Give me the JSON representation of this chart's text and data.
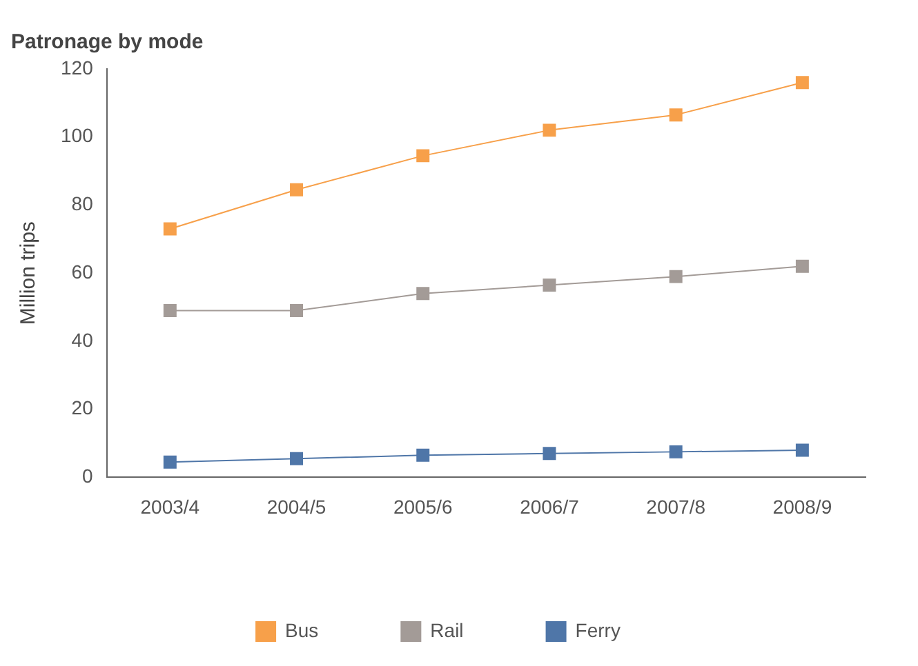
{
  "chart_data": {
    "type": "line",
    "title": "Patronage by mode",
    "ylabel": "Million trips",
    "categories": [
      "2003/4",
      "2004/5",
      "2005/6",
      "2006/7",
      "2007/8",
      "2008/9"
    ],
    "series": [
      {
        "name": "Bus",
        "color": "#f7a04a",
        "values": [
          73,
          84.5,
          94.5,
          102,
          106.5,
          116
        ]
      },
      {
        "name": "Rail",
        "color": "#a39b97",
        "values": [
          49,
          49,
          54,
          56.5,
          59,
          62
        ]
      },
      {
        "name": "Ferry",
        "color": "#4f76a8",
        "values": [
          4.5,
          5.5,
          6.5,
          7,
          7.5,
          8
        ]
      }
    ],
    "ylim": [
      0,
      120
    ],
    "yticks": [
      0,
      20,
      40,
      60,
      80,
      100,
      120
    ],
    "grid": false,
    "legend": "bottom",
    "marker": "square",
    "line_style": "solid"
  }
}
